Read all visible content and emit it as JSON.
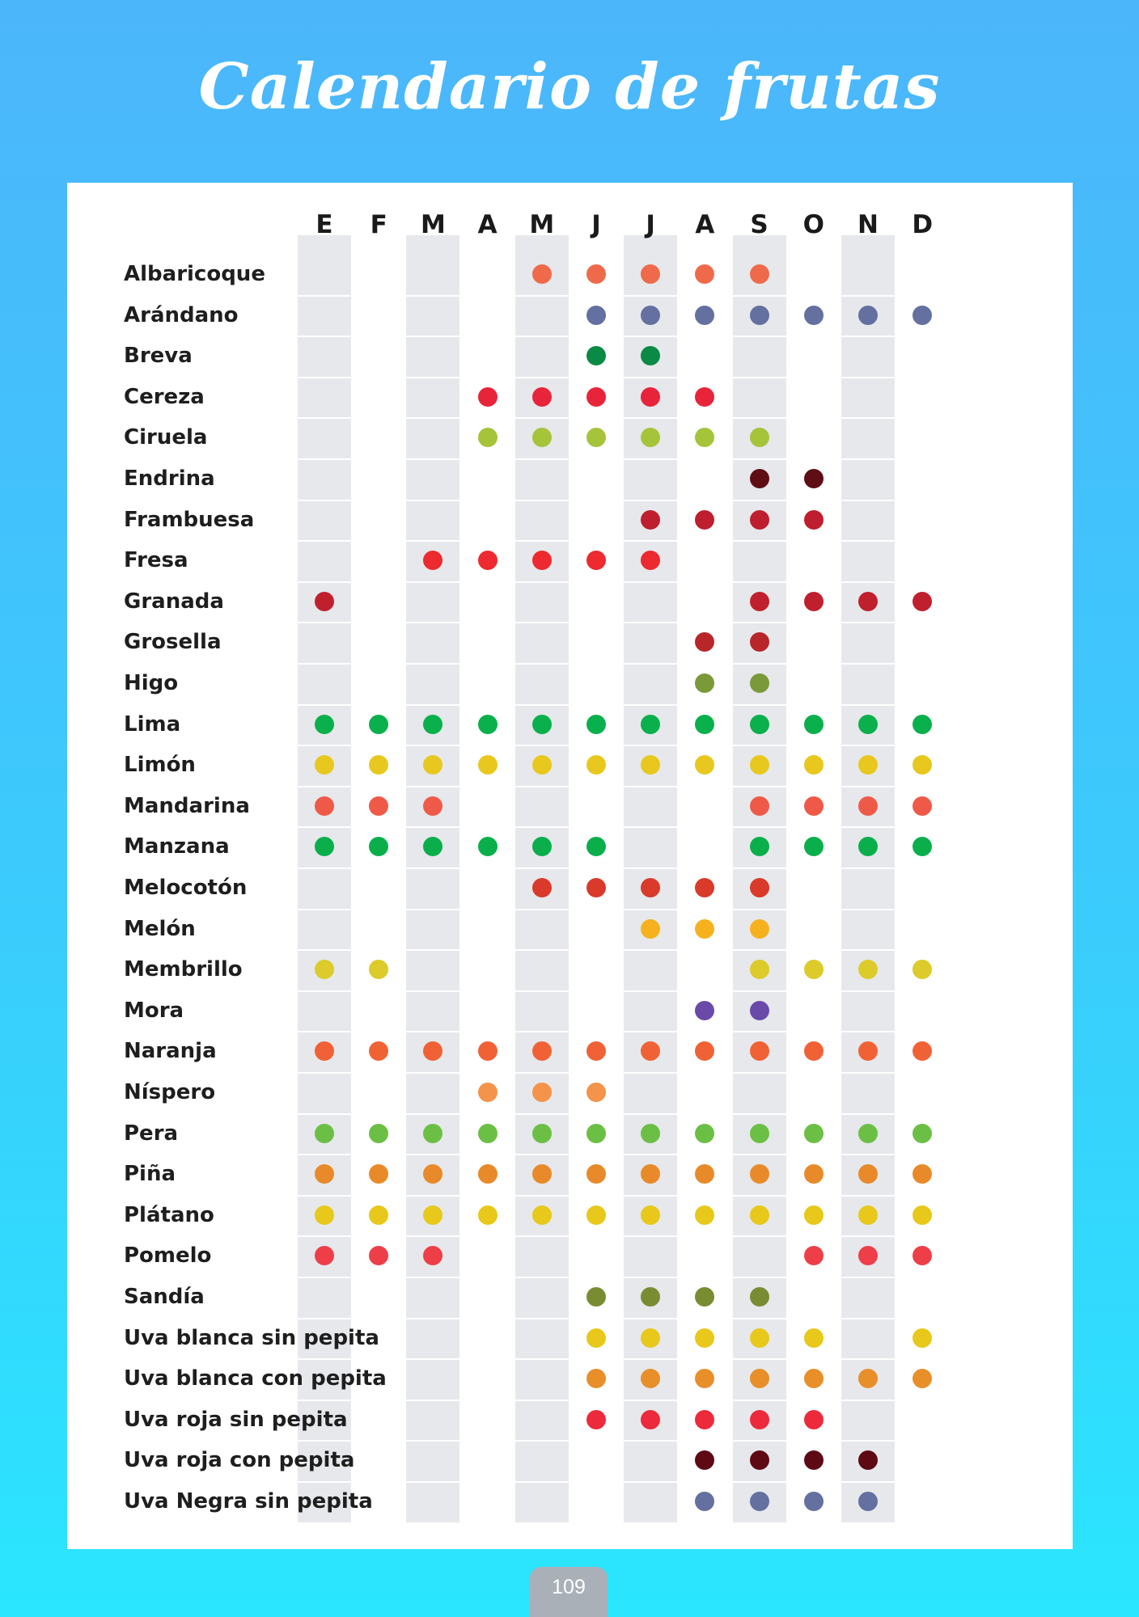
{
  "title": "Calendario de frutas",
  "page_number": "109",
  "chart_data": {
    "type": "table",
    "title": "Calendario de frutas",
    "months": [
      "E",
      "F",
      "M",
      "A",
      "M",
      "J",
      "J",
      "A",
      "S",
      "O",
      "N",
      "D"
    ],
    "shaded_month_columns": [
      1,
      3,
      5,
      7,
      9,
      11
    ],
    "shade_color": "#e6e8eb",
    "fruits": [
      {
        "name": "Albaricoque",
        "color": "#ef6a4a",
        "months": [
          5,
          6,
          7,
          8,
          9
        ]
      },
      {
        "name": "Arándano",
        "color": "#6370a0",
        "months": [
          6,
          7,
          8,
          9,
          10,
          11,
          12
        ]
      },
      {
        "name": "Breva",
        "color": "#0a8a45",
        "months": [
          6,
          7
        ]
      },
      {
        "name": "Cereza",
        "color": "#e8243a",
        "months": [
          4,
          5,
          6,
          7,
          8
        ]
      },
      {
        "name": "Ciruela",
        "color": "#a5c43a",
        "months": [
          4,
          5,
          6,
          7,
          8,
          9
        ]
      },
      {
        "name": "Endrina",
        "color": "#5e0e14",
        "months": [
          9,
          10
        ]
      },
      {
        "name": "Frambuesa",
        "color": "#be1e2d",
        "months": [
          7,
          8,
          9,
          10
        ]
      },
      {
        "name": "Fresa",
        "color": "#ec2a2f",
        "months": [
          3,
          4,
          5,
          6,
          7
        ]
      },
      {
        "name": "Granada",
        "color": "#c0202e",
        "months": [
          1,
          9,
          10,
          11,
          12
        ]
      },
      {
        "name": "Grosella",
        "color": "#b8262a",
        "months": [
          8,
          9
        ]
      },
      {
        "name": "Higo",
        "color": "#7a9a3a",
        "months": [
          8,
          9
        ]
      },
      {
        "name": "Lima",
        "color": "#0ab04c",
        "months": [
          1,
          2,
          3,
          4,
          5,
          6,
          7,
          8,
          9,
          10,
          11,
          12
        ]
      },
      {
        "name": "Limón",
        "color": "#e8c81e",
        "months": [
          1,
          2,
          3,
          4,
          5,
          6,
          7,
          8,
          9,
          10,
          11,
          12
        ]
      },
      {
        "name": "Mandarina",
        "color": "#ef5a48",
        "months": [
          1,
          2,
          3,
          9,
          10,
          11,
          12
        ]
      },
      {
        "name": "Manzana",
        "color": "#0aaf4c",
        "months": [
          1,
          2,
          3,
          4,
          5,
          6,
          9,
          10,
          11,
          12
        ]
      },
      {
        "name": "Melocotón",
        "color": "#d93a2a",
        "months": [
          5,
          6,
          7,
          8,
          9
        ]
      },
      {
        "name": "Melón",
        "color": "#f6b21e",
        "months": [
          7,
          8,
          9
        ]
      },
      {
        "name": "Membrillo",
        "color": "#dccb2a",
        "months": [
          1,
          2,
          9,
          10,
          11,
          12
        ]
      },
      {
        "name": "Mora",
        "color": "#6a4aa8",
        "months": [
          8,
          9
        ]
      },
      {
        "name": "Naranja",
        "color": "#f06236",
        "months": [
          1,
          2,
          3,
          4,
          5,
          6,
          7,
          8,
          9,
          10,
          11,
          12
        ]
      },
      {
        "name": "Níspero",
        "color": "#f4934a",
        "months": [
          4,
          5,
          6
        ]
      },
      {
        "name": "Pera",
        "color": "#6cbf45",
        "months": [
          1,
          2,
          3,
          4,
          5,
          6,
          7,
          8,
          9,
          10,
          11,
          12
        ]
      },
      {
        "name": "Piña",
        "color": "#e88a2a",
        "months": [
          1,
          2,
          3,
          4,
          5,
          6,
          7,
          8,
          9,
          10,
          11,
          12
        ]
      },
      {
        "name": "Plátano",
        "color": "#e8c81a",
        "months": [
          1,
          2,
          3,
          4,
          5,
          6,
          7,
          8,
          9,
          10,
          11,
          12
        ]
      },
      {
        "name": "Pomelo",
        "color": "#ee3e48",
        "months": [
          1,
          2,
          3,
          10,
          11,
          12
        ]
      },
      {
        "name": "Sandía",
        "color": "#7a8c32",
        "months": [
          6,
          7,
          8,
          9
        ]
      },
      {
        "name": "Uva blanca sin pepita",
        "color": "#e8c81a",
        "months": [
          6,
          7,
          8,
          9,
          10,
          12
        ]
      },
      {
        "name": "Uva blanca con pepita",
        "color": "#e88f2a",
        "months": [
          6,
          7,
          8,
          9,
          10,
          11,
          12
        ]
      },
      {
        "name": "Uva roja sin pepita",
        "color": "#ec2a3c",
        "months": [
          6,
          7,
          8,
          9,
          10
        ]
      },
      {
        "name": "Uva roja con pepita",
        "color": "#5e0a14",
        "months": [
          8,
          9,
          10,
          11
        ]
      },
      {
        "name": "Uva Negra sin pepita",
        "color": "#6370a0",
        "months": [
          8,
          9,
          10,
          11
        ]
      }
    ]
  }
}
